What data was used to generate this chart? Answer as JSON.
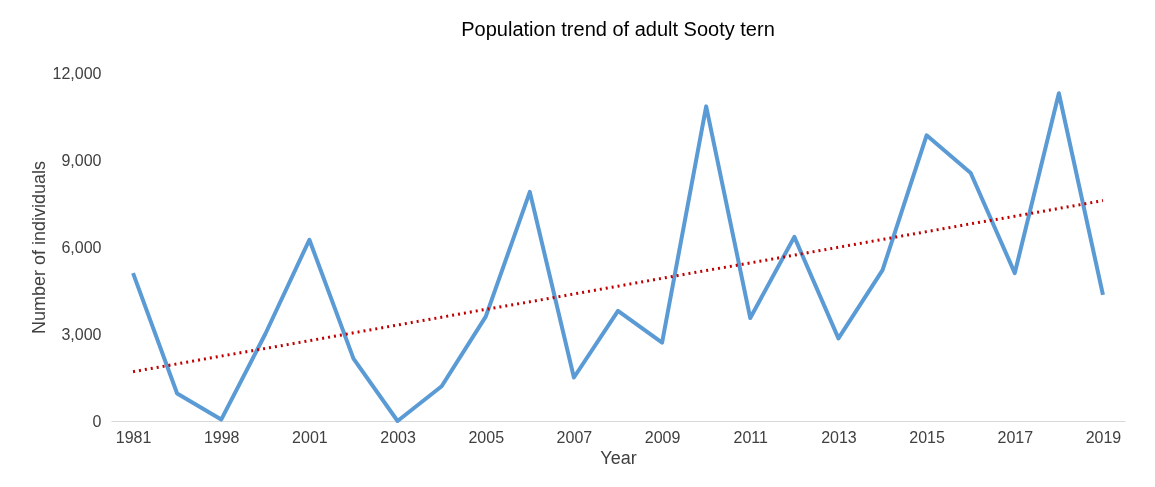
{
  "chart_data": {
    "type": "line",
    "title": "Population trend of adult Sooty tern",
    "xlabel": "Year",
    "ylabel": "Number of individuals",
    "categories": [
      "1981",
      null,
      "1998",
      null,
      "2001",
      null,
      "2003",
      null,
      "2005",
      null,
      "2007",
      null,
      "2009",
      null,
      "2011",
      null,
      "2013",
      null,
      "2015",
      null,
      "2017",
      null,
      "2019"
    ],
    "series": [
      {
        "color": "#5b9bd5",
        "line_style": "solid",
        "values": [
          5100,
          950,
          50,
          3000,
          6250,
          2150,
          0,
          1200,
          3600,
          7900,
          1500,
          3800,
          2700,
          10850,
          3550,
          6350,
          2850,
          5200,
          9850,
          8550,
          5100,
          11300,
          4350
        ]
      },
      {
        "type": "line",
        "color": "#c00000",
        "line_style": "dotted",
        "values": [
          1700,
          1970,
          2240,
          2500,
          2770,
          3040,
          3310,
          3580,
          3850,
          4110,
          4380,
          4650,
          4920,
          5190,
          5450,
          5720,
          5990,
          6260,
          6530,
          6800,
          7060,
          7330,
          7600
        ]
      }
    ],
    "ylim": [
      0,
      12000
    ],
    "yticks": [
      {
        "value": 0,
        "label": "0"
      },
      {
        "value": 3000,
        "label": "3,000"
      },
      {
        "value": 6000,
        "label": "6,000"
      },
      {
        "value": 9000,
        "label": "9,000"
      },
      {
        "value": 12000,
        "label": "12,000"
      }
    ],
    "grid": false
  }
}
